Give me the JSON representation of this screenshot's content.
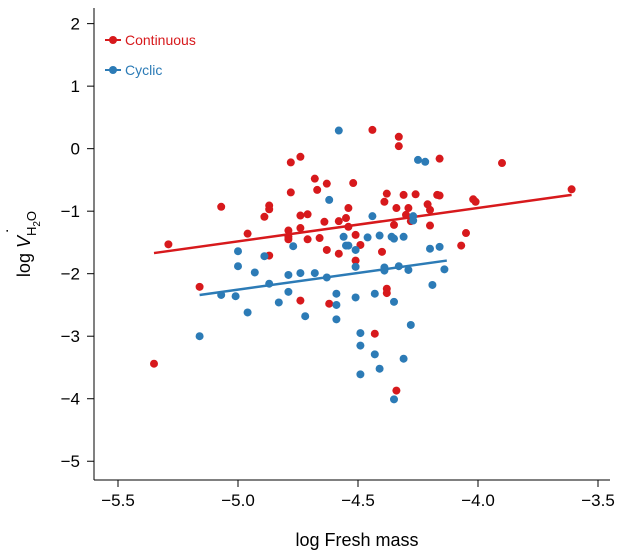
{
  "chart_data": {
    "type": "scatter",
    "xlabel": "log Fresh mass",
    "ylabel": {
      "prefix": "log ",
      "v": "V",
      "dot": "˙",
      "sub1": "H",
      "sub2": "2",
      "sub3": "O"
    },
    "xlim": [
      -5.6,
      -3.45
    ],
    "ylim": [
      -5.3,
      2.25
    ],
    "xticks": [
      -5.5,
      -5.0,
      -4.5,
      -4.0,
      -3.5
    ],
    "xtick_labels": [
      "−5.5",
      "−5.0",
      "−4.5",
      "−4.0",
      "−3.5"
    ],
    "yticks": [
      -5,
      -4,
      -3,
      -2,
      -1,
      0,
      1,
      2
    ],
    "ytick_labels": [
      "−5",
      "−4",
      "−3",
      "−2",
      "−1",
      "0",
      "1",
      "2"
    ],
    "legend_position": "top-left",
    "series": [
      {
        "name": "Continuous",
        "color": "#d7191c",
        "points": [
          [
            -5.35,
            -3.44
          ],
          [
            -5.29,
            -1.53
          ],
          [
            -5.16,
            -2.21
          ],
          [
            -5.07,
            -0.93
          ],
          [
            -4.96,
            -1.36
          ],
          [
            -4.89,
            -1.09
          ],
          [
            -4.87,
            -0.91
          ],
          [
            -4.87,
            -0.97
          ],
          [
            -4.87,
            -1.71
          ],
          [
            -4.79,
            -1.31
          ],
          [
            -4.79,
            -1.41
          ],
          [
            -4.79,
            -1.45
          ],
          [
            -4.78,
            -0.22
          ],
          [
            -4.78,
            -0.7
          ],
          [
            -4.74,
            -0.13
          ],
          [
            -4.74,
            -1.07
          ],
          [
            -4.74,
            -1.27
          ],
          [
            -4.74,
            -2.43
          ],
          [
            -4.71,
            -1.05
          ],
          [
            -4.71,
            -1.45
          ],
          [
            -4.68,
            -0.48
          ],
          [
            -4.67,
            -0.66
          ],
          [
            -4.66,
            -1.43
          ],
          [
            -4.64,
            -1.17
          ],
          [
            -4.63,
            -0.56
          ],
          [
            -4.63,
            -1.62
          ],
          [
            -4.62,
            -2.48
          ],
          [
            -4.58,
            -1.16
          ],
          [
            -4.58,
            -1.68
          ],
          [
            -4.55,
            -1.11
          ],
          [
            -4.54,
            -1.25
          ],
          [
            -4.54,
            -0.95
          ],
          [
            -4.52,
            -0.55
          ],
          [
            -4.51,
            -1.38
          ],
          [
            -4.51,
            -1.79
          ],
          [
            -4.49,
            -1.54
          ],
          [
            -4.44,
            0.3
          ],
          [
            -4.43,
            -2.96
          ],
          [
            -4.4,
            -1.65
          ],
          [
            -4.39,
            -0.85
          ],
          [
            -4.38,
            -0.72
          ],
          [
            -4.38,
            -2.24
          ],
          [
            -4.38,
            -2.31
          ],
          [
            -4.35,
            -1.22
          ],
          [
            -4.34,
            -0.95
          ],
          [
            -4.34,
            -3.87
          ],
          [
            -4.33,
            0.19
          ],
          [
            -4.33,
            0.04
          ],
          [
            -4.31,
            -0.74
          ],
          [
            -4.3,
            -1.06
          ],
          [
            -4.29,
            -0.95
          ],
          [
            -4.28,
            -1.16
          ],
          [
            -4.26,
            -0.73
          ],
          [
            -4.21,
            -0.89
          ],
          [
            -4.2,
            -0.98
          ],
          [
            -4.2,
            -1.23
          ],
          [
            -4.17,
            -0.74
          ],
          [
            -4.16,
            -0.16
          ],
          [
            -4.16,
            -0.75
          ],
          [
            -4.07,
            -1.55
          ],
          [
            -4.05,
            -1.35
          ],
          [
            -4.02,
            -0.81
          ],
          [
            -4.01,
            -0.85
          ],
          [
            -3.9,
            -0.23
          ],
          [
            -3.61,
            -0.65
          ]
        ],
        "fit": {
          "x": [
            -5.35,
            -3.61
          ],
          "y": [
            -1.67,
            -0.74
          ]
        }
      },
      {
        "name": "Cyclic",
        "color": "#2c7bb6",
        "points": [
          [
            -5.16,
            -3.0
          ],
          [
            -5.07,
            -2.34
          ],
          [
            -5.01,
            -2.36
          ],
          [
            -5.0,
            -1.88
          ],
          [
            -5.0,
            -1.64
          ],
          [
            -4.96,
            -2.62
          ],
          [
            -4.93,
            -1.98
          ],
          [
            -4.89,
            -1.72
          ],
          [
            -4.87,
            -2.16
          ],
          [
            -4.83,
            -2.46
          ],
          [
            -4.79,
            -2.02
          ],
          [
            -4.79,
            -2.29
          ],
          [
            -4.77,
            -1.56
          ],
          [
            -4.74,
            -1.99
          ],
          [
            -4.72,
            -2.68
          ],
          [
            -4.68,
            -1.99
          ],
          [
            -4.63,
            -2.06
          ],
          [
            -4.62,
            -0.82
          ],
          [
            -4.59,
            -2.5
          ],
          [
            -4.59,
            -2.73
          ],
          [
            -4.59,
            -2.32
          ],
          [
            -4.58,
            0.29
          ],
          [
            -4.56,
            -1.41
          ],
          [
            -4.55,
            -1.55
          ],
          [
            -4.54,
            -1.55
          ],
          [
            -4.51,
            -1.62
          ],
          [
            -4.51,
            -1.89
          ],
          [
            -4.51,
            -2.38
          ],
          [
            -4.49,
            -2.95
          ],
          [
            -4.49,
            -3.15
          ],
          [
            -4.49,
            -3.61
          ],
          [
            -4.46,
            -1.42
          ],
          [
            -4.44,
            -1.08
          ],
          [
            -4.43,
            -2.32
          ],
          [
            -4.43,
            -3.29
          ],
          [
            -4.41,
            -1.39
          ],
          [
            -4.41,
            -3.52
          ],
          [
            -4.39,
            -1.9
          ],
          [
            -4.39,
            -1.95
          ],
          [
            -4.36,
            -1.41
          ],
          [
            -4.35,
            -1.44
          ],
          [
            -4.35,
            -2.45
          ],
          [
            -4.35,
            -4.01
          ],
          [
            -4.33,
            -1.88
          ],
          [
            -4.31,
            -1.41
          ],
          [
            -4.31,
            -3.36
          ],
          [
            -4.29,
            -1.94
          ],
          [
            -4.28,
            -2.82
          ],
          [
            -4.27,
            -1.08
          ],
          [
            -4.27,
            -1.15
          ],
          [
            -4.25,
            -0.18
          ],
          [
            -4.22,
            -0.21
          ],
          [
            -4.2,
            -1.6
          ],
          [
            -4.19,
            -2.18
          ],
          [
            -4.16,
            -1.57
          ],
          [
            -4.14,
            -1.93
          ]
        ],
        "fit": {
          "x": [
            -5.16,
            -4.13
          ],
          "y": [
            -2.34,
            -1.79
          ]
        }
      }
    ]
  }
}
